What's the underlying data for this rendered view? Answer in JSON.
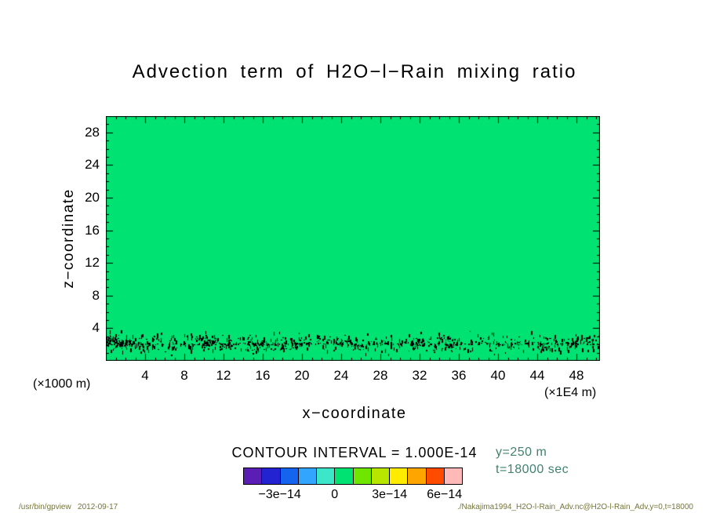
{
  "chart_data": {
    "type": "heatmap",
    "title": "Advection term of H2O−l−Rain mixing ratio",
    "xlabel": "x−coordinate",
    "ylabel": "z−coordinate",
    "x_unit": "(×1E4 m)",
    "y_unit": "(×1000 m)",
    "xlim": [
      0,
      50.4
    ],
    "ylim": [
      0,
      30
    ],
    "x_ticks": [
      4,
      8,
      12,
      16,
      20,
      24,
      28,
      32,
      36,
      40,
      44,
      48
    ],
    "y_ticks": [
      4,
      8,
      12,
      16,
      20,
      24,
      28
    ],
    "x_minor_step": 1,
    "y_minor_step": 1,
    "x_major_every": 4,
    "y_major_every": 4,
    "grid": false,
    "frame": true,
    "field": {
      "background_value": 0,
      "background_color": "#00e271",
      "description": "Advection term is approximately 0 (single uniform green fill, contour bin 0 to 1e-14) over nearly the entire domain; fine black speckle noise of order ±1e-14 appears only in a shallow band near z ≈ 1–3.5 (×1000 m), densest along a broken dotted line at z ≈ 2, spanning the full x range.",
      "noise_band": {
        "z_center": 2.1,
        "z_spread": 0.7,
        "z_min": 0.6,
        "z_max": 3.6,
        "row_z": 2.15,
        "color": "#000000",
        "seed": 1994
      }
    },
    "contour_interval_label": "CONTOUR INTERVAL = 1.000E-14",
    "colorbar": {
      "min": -5e-14,
      "max": 7e-14,
      "interval": 1e-14,
      "cell_colors": [
        "#5a1eb4",
        "#2323d2",
        "#1464f0",
        "#32a5ff",
        "#3ce6c8",
        "#00e271",
        "#6ee600",
        "#b9e600",
        "#ffeb00",
        "#ffa500",
        "#ff4b00",
        "#ffb9b9"
      ],
      "tick_labels": [
        {
          "text": "−3e−14",
          "value": -3e-14
        },
        {
          "text": "0",
          "value": 0
        },
        {
          "text": "3e−14",
          "value": 3e-14
        },
        {
          "text": "6e−14",
          "value": 6e-14
        }
      ]
    },
    "annotations": {
      "lines": [
        "y=250 m",
        "t=18000 sec"
      ],
      "color": "#41826f"
    }
  },
  "footer": {
    "left": "/usr/bin/gpview   2012-09-17",
    "right": "./Nakajima1994_H2O-l-Rain_Adv.nc@H2O-l-Rain_Adv,y=0,t=18000",
    "color": "#75753a"
  }
}
